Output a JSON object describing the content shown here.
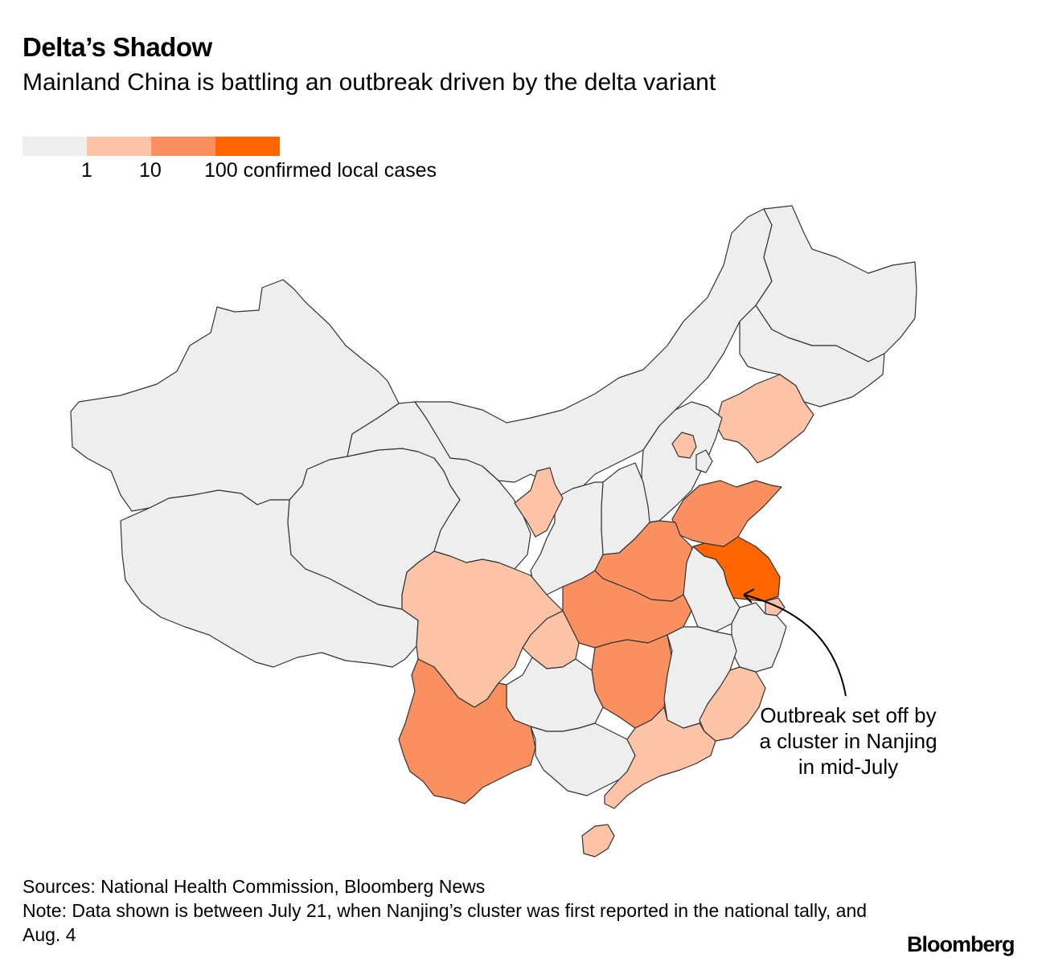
{
  "title": "Delta’s Shadow",
  "subtitle": "Mainland China is battling an outbreak driven by the delta variant",
  "legend": {
    "colors": [
      "#eeeeee",
      "#fcc3a6",
      "#fa9060",
      "#ff6600"
    ],
    "labels": [
      "1",
      "10",
      "100 confirmed local cases"
    ]
  },
  "colors": {
    "none": "#eeeeee",
    "low": "#fcc3a6",
    "mid": "#fa9060",
    "high": "#ff6600",
    "border": "#333333"
  },
  "map": {
    "regions": [
      {
        "name": "Xinjiang",
        "level": "none"
      },
      {
        "name": "Tibet",
        "level": "none"
      },
      {
        "name": "Qinghai",
        "level": "none"
      },
      {
        "name": "Gansu",
        "level": "none"
      },
      {
        "name": "Inner Mongolia",
        "level": "none"
      },
      {
        "name": "Heilongjiang",
        "level": "none"
      },
      {
        "name": "Jilin",
        "level": "none"
      },
      {
        "name": "Liaoning",
        "level": "low"
      },
      {
        "name": "Beijing",
        "level": "low"
      },
      {
        "name": "Hebei",
        "level": "none"
      },
      {
        "name": "Tianjin",
        "level": "none"
      },
      {
        "name": "Shanxi",
        "level": "none"
      },
      {
        "name": "Shaanxi",
        "level": "none"
      },
      {
        "name": "Ningxia",
        "level": "low"
      },
      {
        "name": "Shandong",
        "level": "mid"
      },
      {
        "name": "Henan",
        "level": "mid"
      },
      {
        "name": "Jiangsu",
        "level": "high"
      },
      {
        "name": "Anhui",
        "level": "none"
      },
      {
        "name": "Shanghai",
        "level": "low"
      },
      {
        "name": "Zhejiang",
        "level": "none"
      },
      {
        "name": "Hubei",
        "level": "mid"
      },
      {
        "name": "Chongqing",
        "level": "low"
      },
      {
        "name": "Sichuan",
        "level": "low"
      },
      {
        "name": "Hunan",
        "level": "mid"
      },
      {
        "name": "Jiangxi",
        "level": "none"
      },
      {
        "name": "Fujian",
        "level": "low"
      },
      {
        "name": "Guizhou",
        "level": "none"
      },
      {
        "name": "Yunnan",
        "level": "mid"
      },
      {
        "name": "Guangxi",
        "level": "none"
      },
      {
        "name": "Guangdong",
        "level": "low"
      },
      {
        "name": "Hainan",
        "level": "low"
      }
    ]
  },
  "annotation": "Outbreak set off by a cluster in Nanjing in mid-July",
  "footer": {
    "sources": "Sources: National Health Commission, Bloomberg News",
    "note": "Note: Data shown is between July 21, when Nanjing’s cluster was first reported in the national tally, and Aug. 4"
  },
  "brand": "Bloomberg"
}
